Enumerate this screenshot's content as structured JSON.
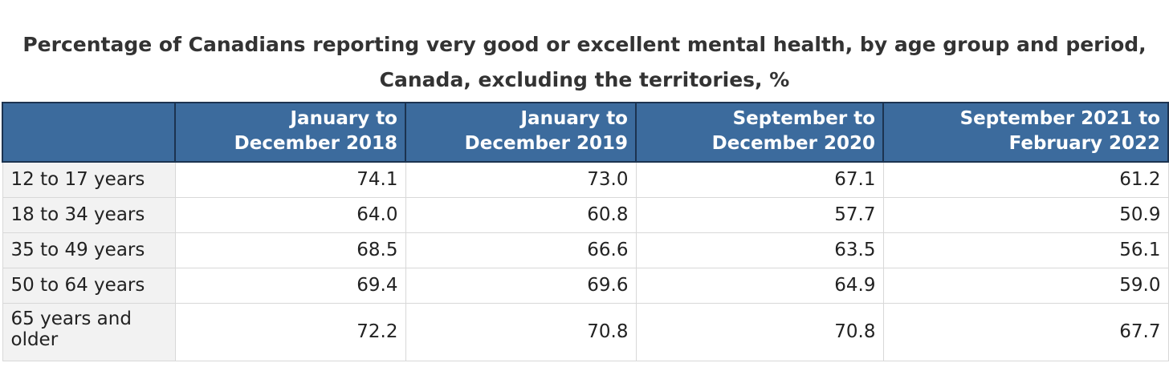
{
  "chart_data": {
    "type": "table",
    "title_line1": "Percentage of Canadians reporting very good or excellent mental health, by age group and period,",
    "title_line2": "Canada, excluding the territories, %",
    "columns": [
      {
        "line1": "January to",
        "line2": "December 2018"
      },
      {
        "line1": "January to",
        "line2": "December 2019"
      },
      {
        "line1": "September to",
        "line2": "December 2020"
      },
      {
        "line1": "September 2021 to",
        "line2": "February 2022"
      }
    ],
    "rows": [
      {
        "label": "12 to 17 years",
        "values": [
          "74.1",
          "73.0",
          "67.1",
          "61.2"
        ]
      },
      {
        "label": "18 to 34 years",
        "values": [
          "64.0",
          "60.8",
          "57.7",
          "50.9"
        ]
      },
      {
        "label": "35 to 49 years",
        "values": [
          "68.5",
          "66.6",
          "63.5",
          "56.1"
        ]
      },
      {
        "label": "50 to 64 years",
        "values": [
          "69.4",
          "69.6",
          "64.9",
          "59.0"
        ]
      },
      {
        "label_line1": "65 years and",
        "label_line2": "older",
        "values": [
          "72.2",
          "70.8",
          "70.8",
          "67.7"
        ]
      }
    ]
  },
  "colors": {
    "header_background": "#3c6b9d",
    "header_border": "#1c3350",
    "row_label_background": "#f2f2f2"
  }
}
